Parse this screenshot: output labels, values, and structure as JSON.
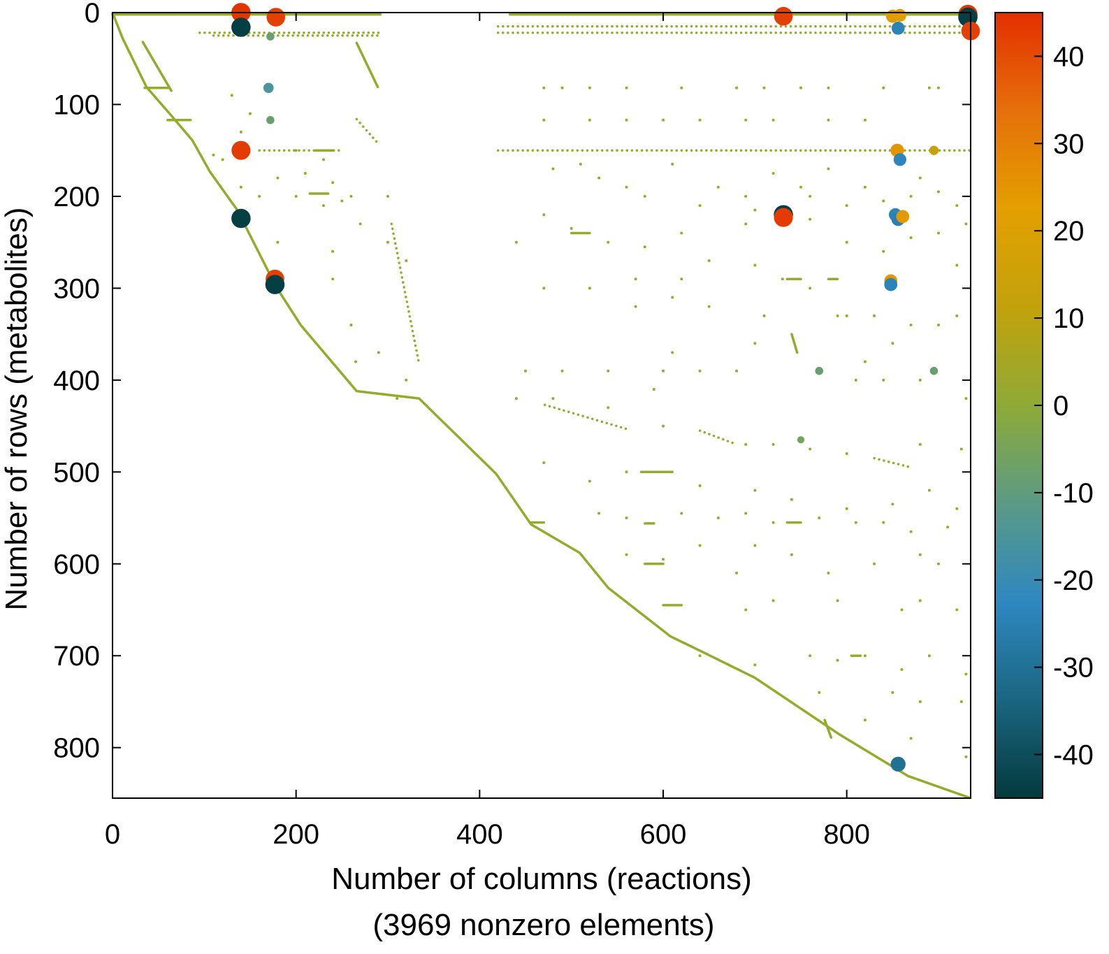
{
  "chart_data": {
    "type": "scatter",
    "subtype": "sparsity-pattern",
    "xlabel": "Number of columns (reactions)",
    "xlabel_sub": "(3969 nonzero elements)",
    "ylabel": "Number of rows (metabolites)",
    "xlim": [
      0,
      935
    ],
    "ylim": [
      855,
      0
    ],
    "y_reversed": true,
    "xticks": [
      0,
      200,
      400,
      600,
      800
    ],
    "yticks": [
      0,
      100,
      200,
      300,
      400,
      500,
      600,
      700,
      800
    ],
    "grid": false,
    "nonzero_color": "#94ab2c",
    "colorbar": {
      "range": [
        -45,
        45
      ],
      "ticks": [
        40,
        30,
        20,
        10,
        0,
        -10,
        -20,
        -30,
        -40
      ],
      "colors": [
        "#033a3d",
        "#1b6680",
        "#2e88c0",
        "#5a9a86",
        "#8eaa36",
        "#c2a20c",
        "#e3a000",
        "#e5700a",
        "#e42f00"
      ]
    },
    "diagonal_path": [
      [
        0,
        0
      ],
      [
        11,
        28
      ],
      [
        37,
        81
      ],
      [
        64,
        112
      ],
      [
        87,
        139
      ],
      [
        106,
        173
      ],
      [
        136,
        215
      ],
      [
        178,
        298
      ],
      [
        205,
        340
      ],
      [
        266,
        412
      ],
      [
        334,
        420
      ],
      [
        418,
        502
      ],
      [
        456,
        557
      ],
      [
        509,
        588
      ],
      [
        540,
        626
      ],
      [
        608,
        679
      ],
      [
        639,
        694
      ],
      [
        700,
        724
      ],
      [
        791,
        785
      ],
      [
        867,
        831
      ],
      [
        935,
        855
      ]
    ],
    "solid_segments": [
      [
        0,
        2,
        292,
        2
      ],
      [
        433,
        2,
        935,
        2
      ],
      [
        35,
        82,
        62,
        82
      ],
      [
        60,
        117,
        85,
        117
      ],
      [
        220,
        150,
        240,
        150
      ],
      [
        215,
        197,
        235,
        197
      ],
      [
        500,
        240,
        520,
        240
      ],
      [
        735,
        290,
        750,
        290
      ],
      [
        780,
        290,
        790,
        290
      ],
      [
        455,
        555,
        470,
        555
      ],
      [
        735,
        555,
        750,
        555
      ],
      [
        580,
        556,
        590,
        556
      ],
      [
        580,
        600,
        600,
        600
      ],
      [
        600,
        645,
        620,
        645
      ],
      [
        805,
        700,
        815,
        700
      ],
      [
        33,
        32,
        64,
        85
      ],
      [
        266,
        33,
        289,
        81
      ],
      [
        740,
        350,
        746,
        370
      ],
      [
        776,
        770,
        783,
        789
      ],
      [
        576,
        500,
        610,
        500
      ]
    ],
    "dotted_segments": [
      [
        95,
        22,
        290,
        22
      ],
      [
        420,
        22,
        935,
        22
      ],
      [
        420,
        15,
        935,
        15
      ],
      [
        110,
        25,
        290,
        25
      ],
      [
        420,
        150,
        935,
        150
      ],
      [
        266,
        116,
        289,
        142
      ],
      [
        304,
        230,
        334,
        382
      ],
      [
        471,
        427,
        563,
        454
      ],
      [
        640,
        455,
        680,
        470
      ],
      [
        830,
        485,
        870,
        495
      ],
      [
        160,
        150,
        250,
        150
      ]
    ],
    "points": [
      [
        470,
        82
      ],
      [
        490,
        82
      ],
      [
        520,
        82
      ],
      [
        560,
        82
      ],
      [
        620,
        82
      ],
      [
        680,
        82
      ],
      [
        710,
        82
      ],
      [
        750,
        82
      ],
      [
        780,
        82
      ],
      [
        840,
        82
      ],
      [
        890,
        82
      ],
      [
        900,
        82
      ],
      [
        470,
        117
      ],
      [
        520,
        117
      ],
      [
        560,
        117
      ],
      [
        600,
        117
      ],
      [
        640,
        117
      ],
      [
        690,
        117
      ],
      [
        720,
        117
      ],
      [
        780,
        117
      ],
      [
        820,
        117
      ],
      [
        480,
        170
      ],
      [
        510,
        165
      ],
      [
        530,
        180
      ],
      [
        560,
        190
      ],
      [
        580,
        200
      ],
      [
        610,
        165
      ],
      [
        640,
        210
      ],
      [
        660,
        190
      ],
      [
        690,
        200
      ],
      [
        700,
        215
      ],
      [
        720,
        175
      ],
      [
        750,
        190
      ],
      [
        760,
        200
      ],
      [
        780,
        170
      ],
      [
        800,
        210
      ],
      [
        820,
        190
      ],
      [
        840,
        205
      ],
      [
        870,
        200
      ],
      [
        880,
        180
      ],
      [
        900,
        195
      ],
      [
        920,
        210
      ],
      [
        930,
        230
      ],
      [
        470,
        220
      ],
      [
        500,
        235
      ],
      [
        540,
        250
      ],
      [
        580,
        255
      ],
      [
        620,
        240
      ],
      [
        650,
        270
      ],
      [
        690,
        230
      ],
      [
        760,
        225
      ],
      [
        800,
        250
      ],
      [
        840,
        260
      ],
      [
        870,
        245
      ],
      [
        900,
        240
      ],
      [
        920,
        275
      ],
      [
        440,
        250
      ],
      [
        470,
        300
      ],
      [
        520,
        300
      ],
      [
        570,
        290
      ],
      [
        610,
        310
      ],
      [
        620,
        290
      ],
      [
        650,
        320
      ],
      [
        700,
        275
      ],
      [
        710,
        330
      ],
      [
        730,
        290
      ],
      [
        760,
        300
      ],
      [
        790,
        330
      ],
      [
        800,
        330
      ],
      [
        830,
        330
      ],
      [
        850,
        360
      ],
      [
        870,
        340
      ],
      [
        900,
        340
      ],
      [
        920,
        330
      ],
      [
        700,
        360
      ],
      [
        680,
        390
      ],
      [
        640,
        390
      ],
      [
        600,
        390
      ],
      [
        540,
        390
      ],
      [
        490,
        390
      ],
      [
        450,
        390
      ],
      [
        610,
        370
      ],
      [
        590,
        410
      ],
      [
        820,
        380
      ],
      [
        810,
        400
      ],
      [
        880,
        400
      ],
      [
        930,
        420
      ],
      [
        840,
        400
      ],
      [
        570,
        320
      ],
      [
        440,
        420
      ],
      [
        480,
        420
      ],
      [
        540,
        430
      ],
      [
        600,
        450
      ],
      [
        690,
        470
      ],
      [
        720,
        470
      ],
      [
        760,
        475
      ],
      [
        800,
        480
      ],
      [
        880,
        470
      ],
      [
        925,
        475
      ],
      [
        470,
        490
      ],
      [
        520,
        510
      ],
      [
        560,
        500
      ],
      [
        640,
        515
      ],
      [
        700,
        520
      ],
      [
        740,
        530
      ],
      [
        800,
        540
      ],
      [
        850,
        535
      ],
      [
        890,
        520
      ],
      [
        920,
        540
      ],
      [
        530,
        545
      ],
      [
        560,
        550
      ],
      [
        620,
        545
      ],
      [
        660,
        550
      ],
      [
        690,
        545
      ],
      [
        720,
        555
      ],
      [
        770,
        550
      ],
      [
        810,
        555
      ],
      [
        840,
        555
      ],
      [
        870,
        565
      ],
      [
        910,
        560
      ],
      [
        560,
        590
      ],
      [
        600,
        595
      ],
      [
        640,
        580
      ],
      [
        680,
        610
      ],
      [
        700,
        580
      ],
      [
        740,
        590
      ],
      [
        780,
        610
      ],
      [
        830,
        600
      ],
      [
        880,
        590
      ],
      [
        900,
        600
      ],
      [
        690,
        650
      ],
      [
        720,
        640
      ],
      [
        790,
        640
      ],
      [
        860,
        650
      ],
      [
        880,
        640
      ],
      [
        920,
        650
      ],
      [
        640,
        700
      ],
      [
        700,
        710
      ],
      [
        760,
        700
      ],
      [
        790,
        705
      ],
      [
        820,
        700
      ],
      [
        860,
        715
      ],
      [
        890,
        700
      ],
      [
        930,
        720
      ],
      [
        770,
        740
      ],
      [
        850,
        740
      ],
      [
        880,
        750
      ],
      [
        925,
        750
      ],
      [
        820,
        770
      ],
      [
        870,
        790
      ],
      [
        930,
        810
      ],
      [
        130,
        90
      ],
      [
        150,
        110
      ],
      [
        200,
        150
      ],
      [
        230,
        160
      ],
      [
        180,
        180
      ],
      [
        210,
        175
      ],
      [
        240,
        185
      ],
      [
        260,
        200
      ],
      [
        300,
        200
      ],
      [
        200,
        200
      ],
      [
        230,
        210
      ],
      [
        270,
        230
      ],
      [
        180,
        250
      ],
      [
        240,
        260
      ],
      [
        300,
        250
      ],
      [
        320,
        270
      ],
      [
        240,
        290
      ],
      [
        260,
        340
      ],
      [
        290,
        370
      ],
      [
        265,
        380
      ],
      [
        320,
        400
      ],
      [
        310,
        420
      ],
      [
        250,
        205
      ],
      [
        160,
        200
      ],
      [
        120,
        160
      ],
      [
        140,
        190
      ],
      [
        140,
        130
      ],
      [
        110,
        155
      ]
    ],
    "large_values": [
      {
        "col": 140,
        "row": 0,
        "value": 44
      },
      {
        "col": 140,
        "row": 16,
        "value": -44
      },
      {
        "col": 178,
        "row": 5,
        "value": 42
      },
      {
        "col": 170,
        "row": 82,
        "value": -15
      },
      {
        "col": 172,
        "row": 117,
        "value": -8
      },
      {
        "col": 172,
        "row": 26,
        "value": -8
      },
      {
        "col": 140,
        "row": 150,
        "value": 43
      },
      {
        "col": 140,
        "row": 224,
        "value": -44
      },
      {
        "col": 177,
        "row": 290,
        "value": 42
      },
      {
        "col": 177,
        "row": 296,
        "value": -44
      },
      {
        "col": 731,
        "row": 4,
        "value": 42
      },
      {
        "col": 731,
        "row": 220,
        "value": -44
      },
      {
        "col": 731,
        "row": 223,
        "value": 43
      },
      {
        "col": 850,
        "row": 4,
        "value": 24
      },
      {
        "col": 858,
        "row": 3,
        "value": 23
      },
      {
        "col": 856,
        "row": 17,
        "value": -24
      },
      {
        "col": 855,
        "row": 150,
        "value": 25
      },
      {
        "col": 858,
        "row": 160,
        "value": -23
      },
      {
        "col": 853,
        "row": 220,
        "value": -24
      },
      {
        "col": 856,
        "row": 225,
        "value": -25
      },
      {
        "col": 861,
        "row": 222,
        "value": 24
      },
      {
        "col": 848,
        "row": 292,
        "value": 24
      },
      {
        "col": 848,
        "row": 296,
        "value": -24
      },
      {
        "col": 856,
        "row": 818,
        "value": -30
      },
      {
        "col": 932,
        "row": 2,
        "value": 44
      },
      {
        "col": 932,
        "row": 5,
        "value": -44
      },
      {
        "col": 935,
        "row": 20,
        "value": 42
      },
      {
        "col": 895,
        "row": 150,
        "value": 12
      },
      {
        "col": 770,
        "row": 390,
        "value": -8
      },
      {
        "col": 895,
        "row": 390,
        "value": -8
      },
      {
        "col": 750,
        "row": 465,
        "value": -5
      }
    ]
  }
}
